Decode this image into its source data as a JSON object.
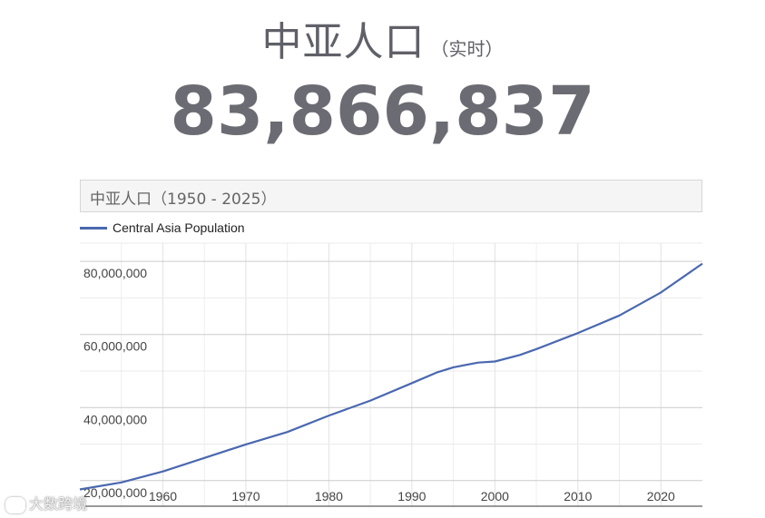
{
  "header": {
    "title": "中亚人口",
    "subtitle": "（实时）",
    "counter": "83,866,837"
  },
  "watermark": "大数跨境",
  "chart_data": {
    "type": "line",
    "title": "中亚人口（1950 - 2025）",
    "legend": {
      "placement": "top-left",
      "entries": [
        "Central Asia Population"
      ]
    },
    "series": [
      {
        "name": "Central Asia Population",
        "color": "#4a68b0",
        "x": [
          1950,
          1955,
          1960,
          1965,
          1970,
          1975,
          1980,
          1985,
          1990,
          1993,
          1995,
          1998,
          2000,
          2003,
          2005,
          2010,
          2015,
          2020,
          2025
        ],
        "values": [
          17600000,
          19500000,
          22500000,
          26200000,
          29900000,
          33300000,
          37800000,
          41900000,
          46700000,
          49600000,
          51000000,
          52300000,
          52600000,
          54400000,
          56000000,
          60400000,
          65200000,
          71500000,
          79400000
        ]
      }
    ],
    "xlim": [
      1950,
      2025
    ],
    "ylim": [
      13000000,
      85000000
    ],
    "x_ticks": [
      1960,
      1970,
      1980,
      1990,
      2000,
      2010,
      2020
    ],
    "y_ticks": [
      20000000,
      40000000,
      60000000,
      80000000
    ],
    "y_tick_labels": [
      "20,000,000",
      "40,000,000",
      "60,000,000",
      "80,000,000"
    ],
    "grid": true
  }
}
